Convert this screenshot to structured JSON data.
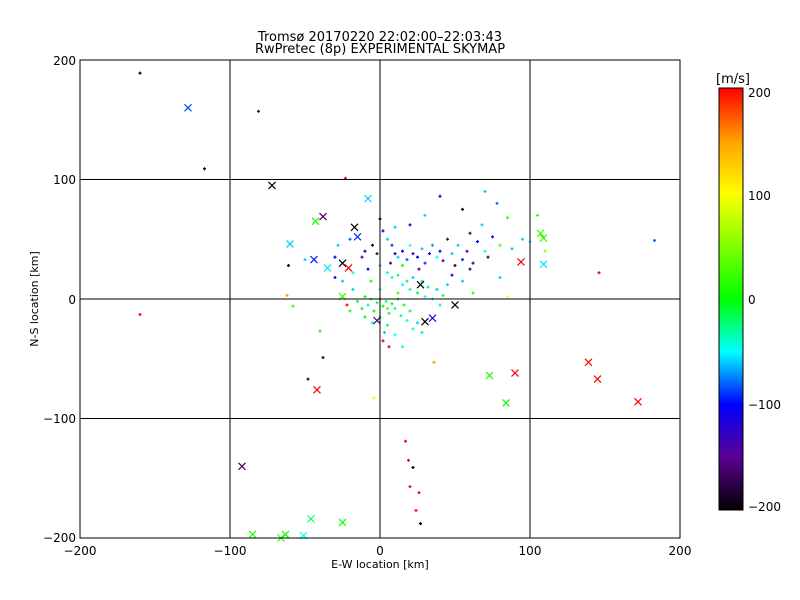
{
  "chart_data": {
    "type": "scatter",
    "title": "Tromsø 20170220 22:02:00–22:03:43",
    "subtitle": "RwPretec (8p) EXPERIMENTAL SKYMAP",
    "xlabel": "E-W location [km]",
    "ylabel": "N-S location [km]",
    "xlim": [
      -200,
      200
    ],
    "ylim": [
      -200,
      200
    ],
    "xticks": [
      "−200",
      "−100",
      "0",
      "100",
      "200"
    ],
    "yticks": [
      "200",
      "100",
      "0",
      "−100",
      "−200"
    ],
    "grid": true,
    "colorbar": {
      "label": "[m/s]",
      "range": [
        -200,
        200
      ],
      "ticks": [
        "200",
        "100",
        "0",
        "−100",
        "−200"
      ],
      "colormap": [
        "#000000",
        "#5a0090",
        "#0000ff",
        "#00ffff",
        "#00ff00",
        "#ffff00",
        "#ffa000",
        "#ff0000"
      ]
    },
    "point_fields": [
      "east_km",
      "north_km",
      "velocity_ms"
    ],
    "large_markers": [
      [
        -128,
        160,
        -85
      ],
      [
        -72,
        95,
        -200
      ],
      [
        -38,
        69,
        -165
      ],
      [
        -43,
        65,
        10
      ],
      [
        -17,
        60,
        -200
      ],
      [
        -8,
        84,
        -60
      ],
      [
        -60,
        46,
        -60
      ],
      [
        -44,
        33,
        -95
      ],
      [
        -25,
        30,
        -200
      ],
      [
        -21,
        26,
        200
      ],
      [
        -35,
        26,
        -55
      ],
      [
        -15,
        52,
        -90
      ],
      [
        27,
        12,
        -200
      ],
      [
        50,
        -5,
        -200
      ],
      [
        30,
        -19,
        -200
      ],
      [
        35,
        -16,
        -100
      ],
      [
        -2,
        -18,
        -165
      ],
      [
        -25,
        2,
        20
      ],
      [
        94,
        31,
        200
      ],
      [
        107,
        55,
        25
      ],
      [
        109,
        51,
        15
      ],
      [
        109,
        29,
        -55
      ],
      [
        90,
        -62,
        200
      ],
      [
        73,
        -64,
        10
      ],
      [
        84,
        -87,
        5
      ],
      [
        139,
        -53,
        200
      ],
      [
        145,
        -67,
        200
      ],
      [
        172,
        -86,
        200
      ],
      [
        -42,
        -76,
        200
      ],
      [
        -92,
        -140,
        -165
      ],
      [
        -85,
        -197,
        10
      ],
      [
        -63,
        -197,
        5
      ],
      [
        -46,
        -184,
        -20
      ],
      [
        -25,
        -187,
        5
      ],
      [
        -51,
        -198,
        -50
      ],
      [
        -66,
        -200,
        15
      ]
    ],
    "small_markers": [
      [
        -160,
        189,
        -200
      ],
      [
        -81,
        157,
        -165
      ],
      [
        -117,
        109,
        -200
      ],
      [
        -160,
        -13,
        200
      ],
      [
        -23,
        101,
        200
      ],
      [
        -48,
        -67,
        -165
      ],
      [
        -38,
        -49,
        -165
      ],
      [
        -40,
        -27,
        10
      ],
      [
        -4,
        -83,
        100
      ],
      [
        146,
        22,
        200
      ],
      [
        183,
        49,
        -80
      ],
      [
        36,
        -53,
        150
      ],
      [
        17,
        -119,
        200
      ],
      [
        19,
        -135,
        200
      ],
      [
        22,
        -141,
        -200
      ],
      [
        20,
        -157,
        200
      ],
      [
        26,
        -162,
        200
      ],
      [
        24,
        -177,
        200
      ],
      [
        27,
        -188,
        -200
      ],
      [
        -62,
        3,
        150
      ],
      [
        -58,
        -6,
        20
      ],
      [
        -61,
        28,
        -200
      ],
      [
        -50,
        33,
        -60
      ],
      [
        -30,
        35,
        -100
      ],
      [
        -10,
        40,
        -120
      ],
      [
        -5,
        45,
        -200
      ],
      [
        0,
        67,
        -200
      ],
      [
        2,
        57,
        -100
      ],
      [
        5,
        50,
        -60
      ],
      [
        8,
        45,
        -90
      ],
      [
        10,
        38,
        -100
      ],
      [
        12,
        35,
        -60
      ],
      [
        15,
        40,
        -110
      ],
      [
        18,
        33,
        -80
      ],
      [
        20,
        45,
        -50
      ],
      [
        22,
        38,
        -120
      ],
      [
        25,
        35,
        -100
      ],
      [
        28,
        42,
        -60
      ],
      [
        30,
        30,
        -90
      ],
      [
        33,
        38,
        -110
      ],
      [
        35,
        45,
        -70
      ],
      [
        38,
        35,
        -50
      ],
      [
        40,
        40,
        -100
      ],
      [
        42,
        32,
        -130
      ],
      [
        45,
        50,
        -160
      ],
      [
        48,
        38,
        -60
      ],
      [
        50,
        28,
        -170
      ],
      [
        52,
        45,
        -60
      ],
      [
        55,
        33,
        -90
      ],
      [
        58,
        40,
        -150
      ],
      [
        60,
        55,
        -170
      ],
      [
        62,
        30,
        -160
      ],
      [
        65,
        48,
        -100
      ],
      [
        68,
        62,
        -60
      ],
      [
        70,
        40,
        -50
      ],
      [
        72,
        35,
        -165
      ],
      [
        75,
        52,
        -110
      ],
      [
        78,
        80,
        -80
      ],
      [
        80,
        45,
        30
      ],
      [
        85,
        68,
        10
      ],
      [
        88,
        42,
        -60
      ],
      [
        95,
        50,
        -60
      ],
      [
        100,
        48,
        -50
      ],
      [
        105,
        70,
        20
      ],
      [
        110,
        40,
        60
      ],
      [
        70,
        90,
        -60
      ],
      [
        40,
        86,
        -100
      ],
      [
        55,
        75,
        -200
      ],
      [
        30,
        70,
        -60
      ],
      [
        20,
        62,
        -100
      ],
      [
        10,
        60,
        -60
      ],
      [
        -12,
        35,
        -150
      ],
      [
        -18,
        22,
        -50
      ],
      [
        -8,
        25,
        -100
      ],
      [
        0,
        28,
        -60
      ],
      [
        5,
        22,
        -50
      ],
      [
        8,
        18,
        -40
      ],
      [
        12,
        20,
        -30
      ],
      [
        15,
        12,
        -50
      ],
      [
        18,
        15,
        -20
      ],
      [
        20,
        8,
        -40
      ],
      [
        22,
        18,
        -60
      ],
      [
        25,
        5,
        -10
      ],
      [
        28,
        15,
        -30
      ],
      [
        30,
        2,
        -50
      ],
      [
        32,
        10,
        -20
      ],
      [
        35,
        0,
        -40
      ],
      [
        38,
        8,
        -60
      ],
      [
        40,
        -5,
        -30
      ],
      [
        42,
        3,
        -20
      ],
      [
        45,
        12,
        -60
      ],
      [
        -15,
        -2,
        -20
      ],
      [
        -12,
        -8,
        -10
      ],
      [
        -10,
        2,
        0
      ],
      [
        -8,
        -5,
        -30
      ],
      [
        -6,
        0,
        -10
      ],
      [
        -4,
        -10,
        5
      ],
      [
        -2,
        -3,
        -20
      ],
      [
        0,
        0,
        10
      ],
      [
        2,
        -6,
        -5
      ],
      [
        4,
        -2,
        -30
      ],
      [
        6,
        -12,
        -20
      ],
      [
        8,
        -4,
        0
      ],
      [
        10,
        -8,
        -40
      ],
      [
        12,
        0,
        -10
      ],
      [
        14,
        -14,
        -30
      ],
      [
        16,
        -5,
        10
      ],
      [
        18,
        -18,
        -50
      ],
      [
        20,
        -10,
        -20
      ],
      [
        22,
        -25,
        -40
      ],
      [
        25,
        -20,
        -60
      ],
      [
        28,
        -28,
        -30
      ],
      [
        10,
        -30,
        -50
      ],
      [
        5,
        -22,
        -20
      ],
      [
        0,
        -15,
        -10
      ],
      [
        -5,
        -20,
        -40
      ],
      [
        -10,
        -15,
        0
      ],
      [
        2,
        -35,
        200
      ],
      [
        6,
        -40,
        200
      ],
      [
        3,
        -28,
        -60
      ],
      [
        15,
        -40,
        -50
      ],
      [
        -20,
        -10,
        20
      ],
      [
        -22,
        -5,
        200
      ],
      [
        -18,
        8,
        -60
      ],
      [
        -25,
        15,
        -60
      ],
      [
        -30,
        18,
        -100
      ],
      [
        -28,
        45,
        -60
      ],
      [
        -20,
        50,
        -80
      ],
      [
        -2,
        38,
        -165
      ],
      [
        7,
        30,
        -165
      ],
      [
        26,
        25,
        -165
      ],
      [
        48,
        20,
        -100
      ],
      [
        55,
        15,
        -60
      ],
      [
        60,
        25,
        -165
      ],
      [
        62,
        5,
        10
      ],
      [
        80,
        18,
        -60
      ],
      [
        85,
        2,
        100
      ],
      [
        15,
        28,
        10
      ],
      [
        -6,
        15,
        10
      ],
      [
        12,
        5,
        20
      ],
      [
        0,
        8,
        -50
      ],
      [
        5,
        -8,
        40
      ]
    ]
  }
}
